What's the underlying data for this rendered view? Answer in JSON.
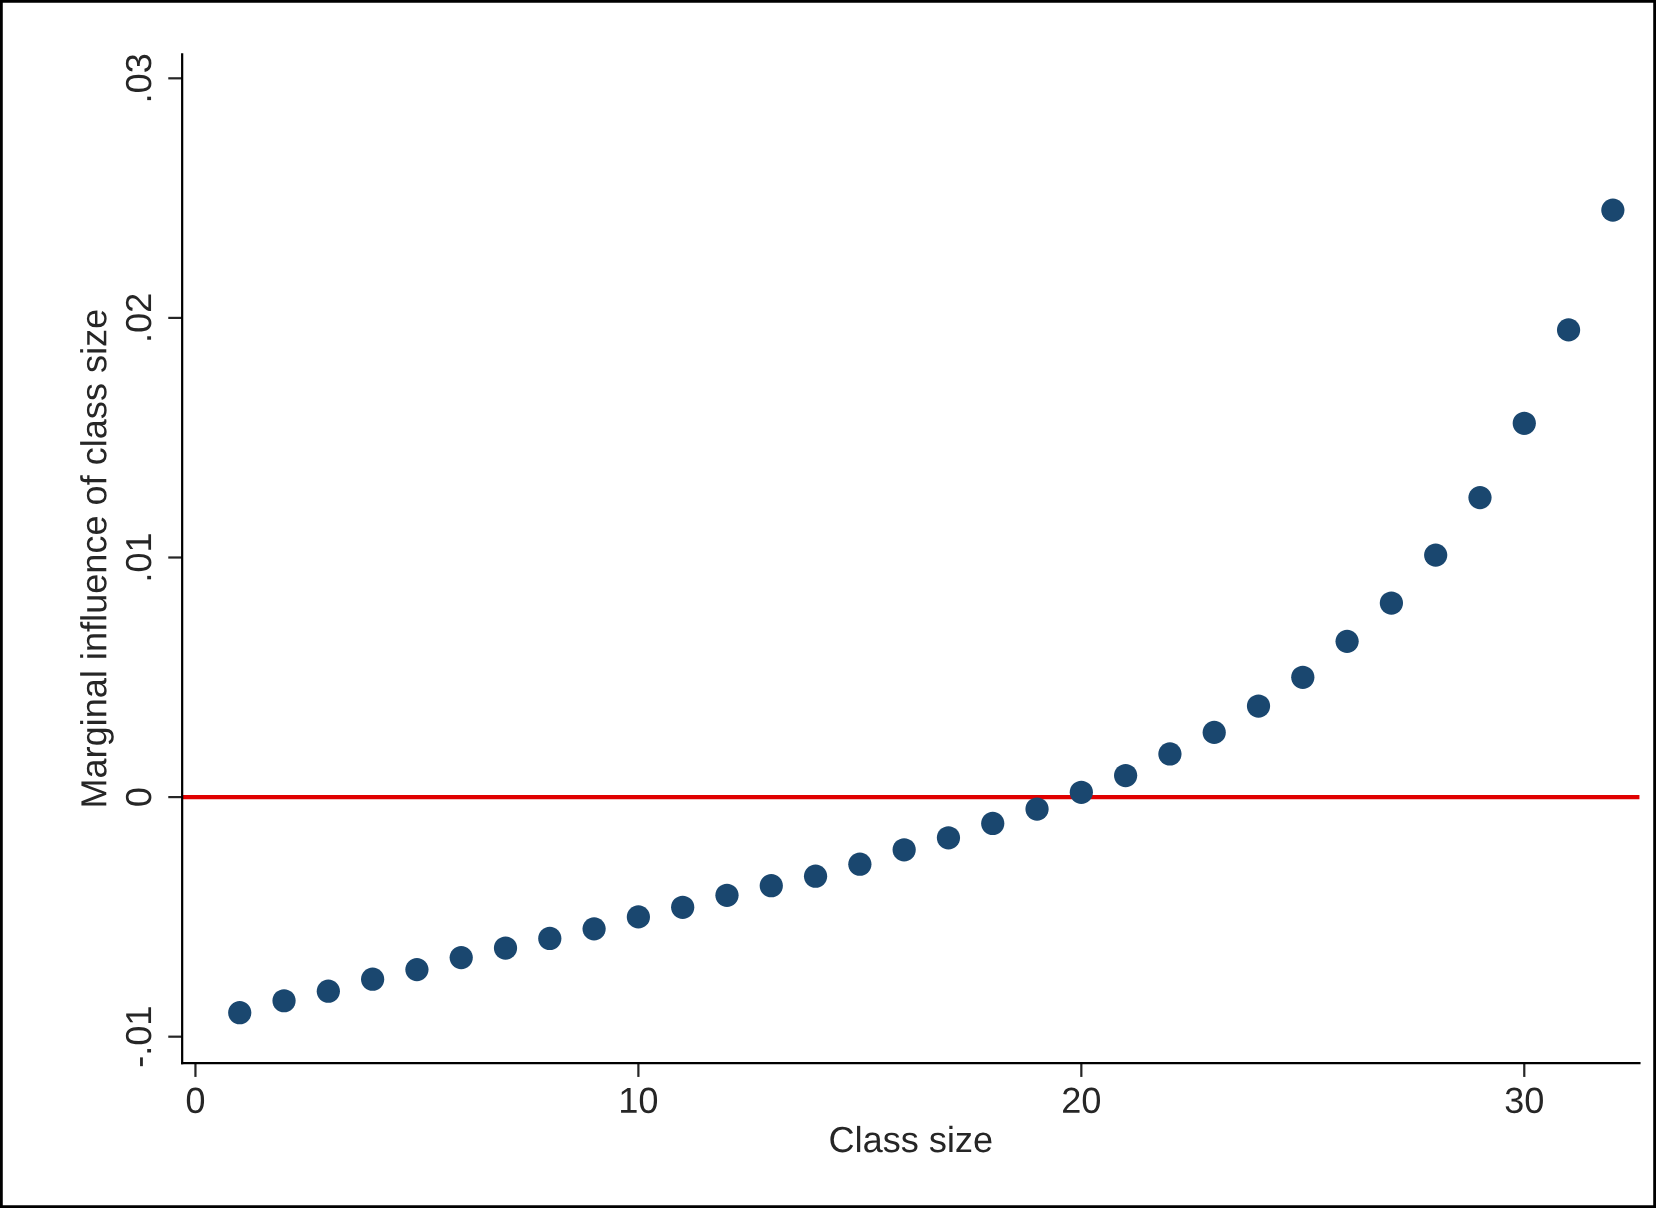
{
  "chart_data": {
    "type": "scatter",
    "xlabel": "Class size",
    "ylabel": "Marginal influence of class size",
    "x": [
      1,
      2,
      3,
      4,
      5,
      6,
      7,
      8,
      9,
      10,
      11,
      12,
      13,
      14,
      15,
      16,
      17,
      18,
      19,
      20,
      21,
      22,
      23,
      24,
      25,
      26,
      27,
      28,
      29,
      30,
      31,
      32
    ],
    "series": [
      {
        "color": "#1a476f",
        "values": [
          -0.009,
          -0.0085,
          -0.0081,
          -0.0076,
          -0.0072,
          -0.0067,
          -0.0063,
          -0.0059,
          -0.0055,
          -0.005,
          -0.0046,
          -0.0041,
          -0.0037,
          -0.0033,
          -0.0028,
          -0.0022,
          -0.0017,
          -0.0011,
          -0.0005,
          0.0002,
          0.0009,
          0.0018,
          0.0027,
          0.0038,
          0.005,
          0.0065,
          0.0081,
          0.0101,
          0.0125,
          0.0156,
          0.0195,
          0.0245
        ]
      }
    ],
    "marker": "circle",
    "xlim": [
      -0.3,
      32.6
    ],
    "xticks": [
      0,
      10,
      20,
      30
    ],
    "ylim": [
      -0.0111,
      0.031
    ],
    "yticks": [
      {
        "value": -0.01,
        "label": "-.01"
      },
      0,
      {
        "value": 0.01,
        "label": ".01"
      },
      {
        "value": 0.02,
        "label": ".02"
      },
      {
        "value": 0.03,
        "label": ".03"
      }
    ],
    "ref_lines": [
      {
        "axis": "y",
        "value": 0,
        "color": "#e00000",
        "line_style": "solid"
      }
    ],
    "grid": false,
    "legend": false
  }
}
